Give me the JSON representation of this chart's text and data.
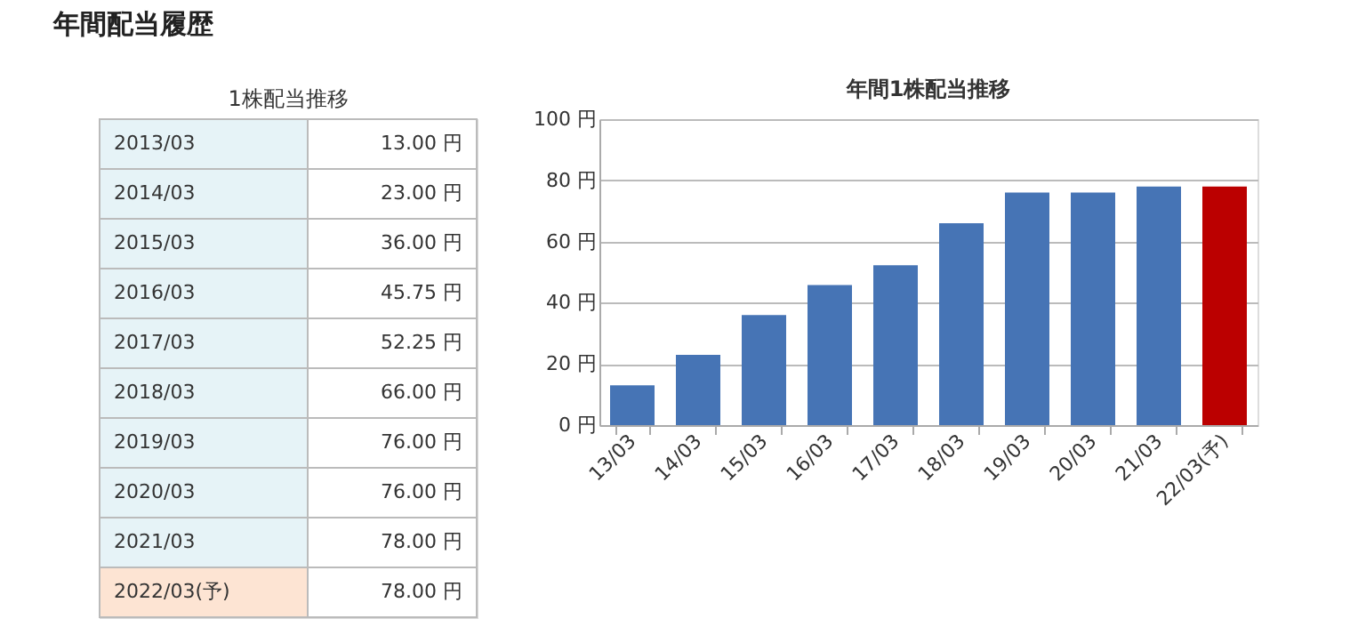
{
  "chart_data": [
    {
      "type": "other",
      "title": "年間配当履歴",
      "subtitle": "1株配当推移",
      "categories": [
        "2013/03",
        "2014/03",
        "2015/03",
        "2016/03",
        "2017/03",
        "2018/03",
        "2019/03",
        "2020/03",
        "2021/03",
        "2022/03(予)"
      ],
      "values": [
        13.0,
        23.0,
        36.0,
        45.75,
        52.25,
        66.0,
        76.0,
        76.0,
        78.0,
        78.0
      ],
      "value_labels": [
        "13.00 円",
        "23.00 円",
        "36.00 円",
        "45.75 円",
        "52.25 円",
        "66.00 円",
        "76.00 円",
        "76.00 円",
        "78.00 円",
        "78.00 円"
      ]
    },
    {
      "type": "bar",
      "title": "年間1株配当推移",
      "categories": [
        "13/03",
        "14/03",
        "15/03",
        "16/03",
        "17/03",
        "18/03",
        "19/03",
        "20/03",
        "21/03",
        "22/03(予)"
      ],
      "values": [
        13.0,
        23.0,
        36.0,
        45.75,
        52.25,
        66.0,
        76.0,
        76.0,
        78.0,
        78.0
      ],
      "colors": [
        "#4674b5",
        "#4674b5",
        "#4674b5",
        "#4674b5",
        "#4674b5",
        "#4674b5",
        "#4674b5",
        "#4674b5",
        "#4674b5",
        "#bb0000"
      ],
      "ylim": [
        0,
        100
      ],
      "yticks": [
        {
          "value": 0,
          "label": "0 円"
        },
        {
          "value": 20,
          "label": "20 円"
        },
        {
          "value": 40,
          "label": "40 円"
        },
        {
          "value": 60,
          "label": "60 円"
        },
        {
          "value": 80,
          "label": "80 円"
        },
        {
          "value": 100,
          "label": "100 円"
        }
      ],
      "grid": "y"
    }
  ]
}
